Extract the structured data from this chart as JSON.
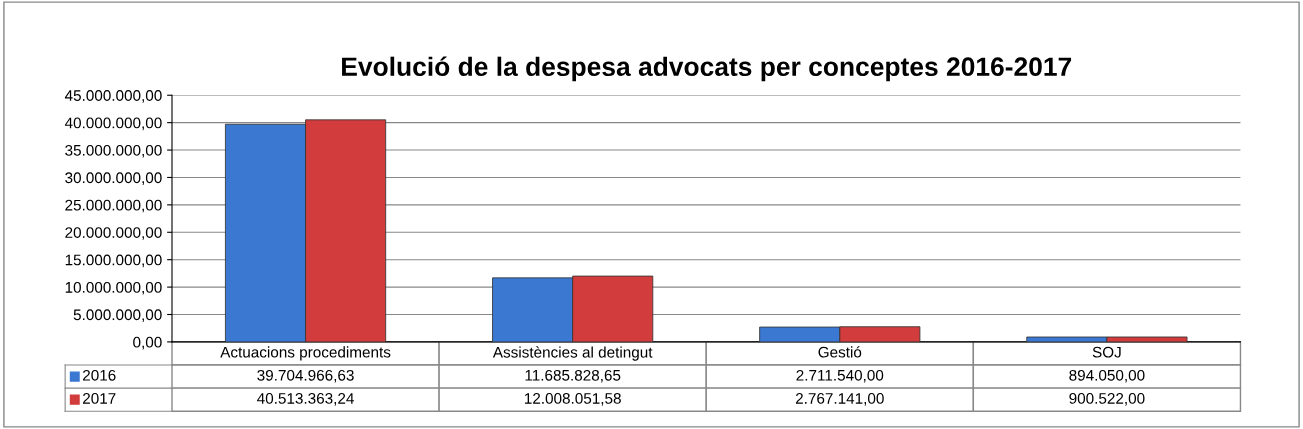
{
  "chart_data": {
    "type": "bar",
    "title": "Evolució de la despesa advocats per conceptes 2016-2017",
    "categories": [
      "Actuacions procediments",
      "Assistències al detingut",
      "Gestió",
      "SOJ"
    ],
    "series": [
      {
        "name": "2016",
        "color": "#3b78d2",
        "values": [
          39704966.63,
          11685828.65,
          2711540.0,
          894050.0
        ],
        "value_labels": [
          "39.704.966,63",
          "11.685.828,65",
          "2.711.540,00",
          "894.050,00"
        ]
      },
      {
        "name": "2017",
        "color": "#d23c3c",
        "values": [
          40513363.24,
          12008051.58,
          2767141.0,
          900522.0
        ],
        "value_labels": [
          "40.513.363,24",
          "12.008.051,58",
          "2.767.141,00",
          "900.522,00"
        ]
      }
    ],
    "ylim": [
      0,
      45000000
    ],
    "yticks": [
      {
        "value": 0,
        "label": "0,00"
      },
      {
        "value": 5000000,
        "label": "5.000.000,00"
      },
      {
        "value": 10000000,
        "label": "10.000.000,00"
      },
      {
        "value": 15000000,
        "label": "15.000.000,00"
      },
      {
        "value": 20000000,
        "label": "20.000.000,00"
      },
      {
        "value": 25000000,
        "label": "25.000.000,00"
      },
      {
        "value": 30000000,
        "label": "30.000.000,00"
      },
      {
        "value": 35000000,
        "label": "35.000.000,00"
      },
      {
        "value": 40000000,
        "label": "40.000.000,00"
      },
      {
        "value": 45000000,
        "label": "45.000.000,00"
      }
    ],
    "grid": "y",
    "legend": "bottom left"
  }
}
